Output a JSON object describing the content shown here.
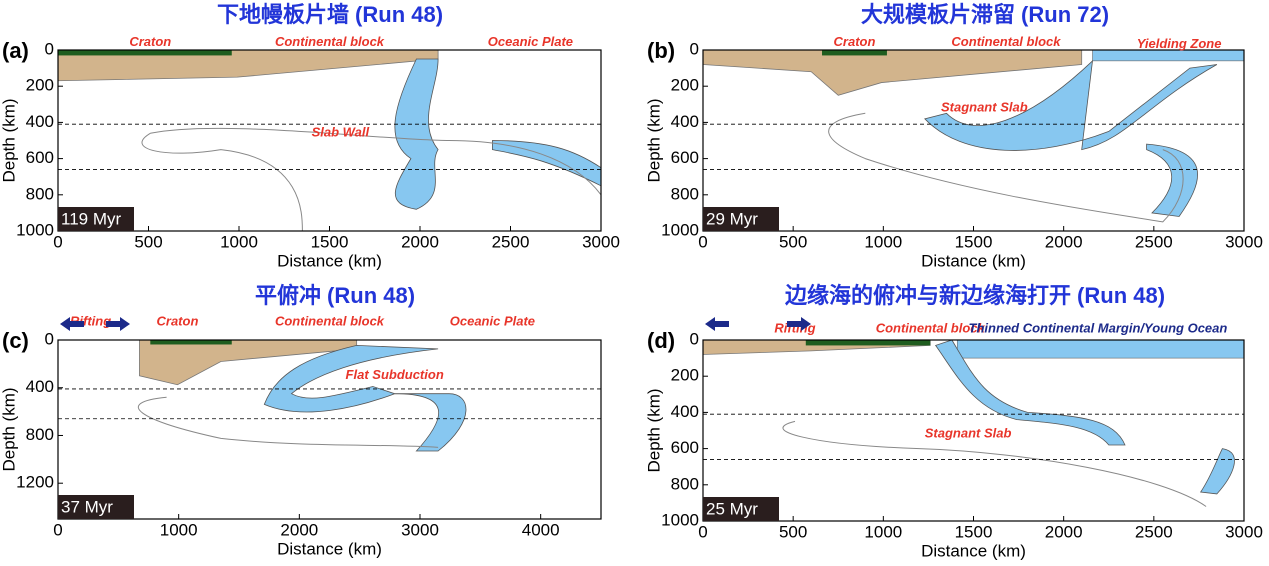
{
  "chart_data": [
    {
      "type": "section",
      "title": "下地幔板片墙 (Run 48)",
      "panel_label": "(a)",
      "x_label": "Distance (km)",
      "y_label": "Depth (km)",
      "xlim": [
        0,
        3000
      ],
      "xticks": [
        0,
        500,
        1000,
        1500,
        2000,
        2500,
        3000
      ],
      "ylim": [
        0,
        1000
      ],
      "yticks": [
        0,
        200,
        400,
        600,
        800,
        1000
      ],
      "reference_depths": [
        410,
        660
      ],
      "time": "119 Myr",
      "annotations": [
        "Craton",
        "Continental block",
        "Oceanic Plate",
        "Slab Wall"
      ]
    },
    {
      "type": "section",
      "title": "大规模板片滞留 (Run 72)",
      "panel_label": "(b)",
      "x_label": "Distance (km)",
      "y_label": "Depth (km)",
      "xlim": [
        0,
        3000
      ],
      "xticks": [
        0,
        500,
        1000,
        1500,
        2000,
        2500,
        3000
      ],
      "ylim": [
        0,
        1000
      ],
      "yticks": [
        0,
        200,
        400,
        600,
        800,
        1000
      ],
      "reference_depths": [
        410,
        660
      ],
      "time": "29 Myr",
      "annotations": [
        "Craton",
        "Continental block",
        "Yielding Zone",
        "Stagnant Slab"
      ]
    },
    {
      "type": "section",
      "title": "平俯冲 (Run 48)",
      "panel_label": "(c)",
      "x_label": "Distance (km)",
      "y_label": "Depth (km)",
      "xlim": [
        0,
        4500
      ],
      "xticks": [
        0,
        1000,
        2000,
        3000,
        4000
      ],
      "ylim": [
        0,
        1500
      ],
      "yticks": [
        0,
        400,
        800,
        1200
      ],
      "reference_depths": [
        410,
        660
      ],
      "time": "37 Myr",
      "annotations": [
        "Rifting",
        "Craton",
        "Continental block",
        "Oceanic Plate",
        "Flat Subduction"
      ]
    },
    {
      "type": "section",
      "title": "边缘海的俯冲与新边缘海打开 (Run 48)",
      "panel_label": "(d)",
      "x_label": "Distance (km)",
      "y_label": "Depth (km)",
      "xlim": [
        0,
        3000
      ],
      "xticks": [
        0,
        500,
        1000,
        1500,
        2000,
        2500,
        3000
      ],
      "ylim": [
        0,
        1000
      ],
      "yticks": [
        0,
        200,
        400,
        600,
        800,
        1000
      ],
      "reference_depths": [
        410,
        660
      ],
      "time": "25 Myr",
      "annotations": [
        "Rifting",
        "Continental block",
        "Thinned Continental Margin/Young Ocean",
        "Stagnant Slab"
      ]
    }
  ]
}
